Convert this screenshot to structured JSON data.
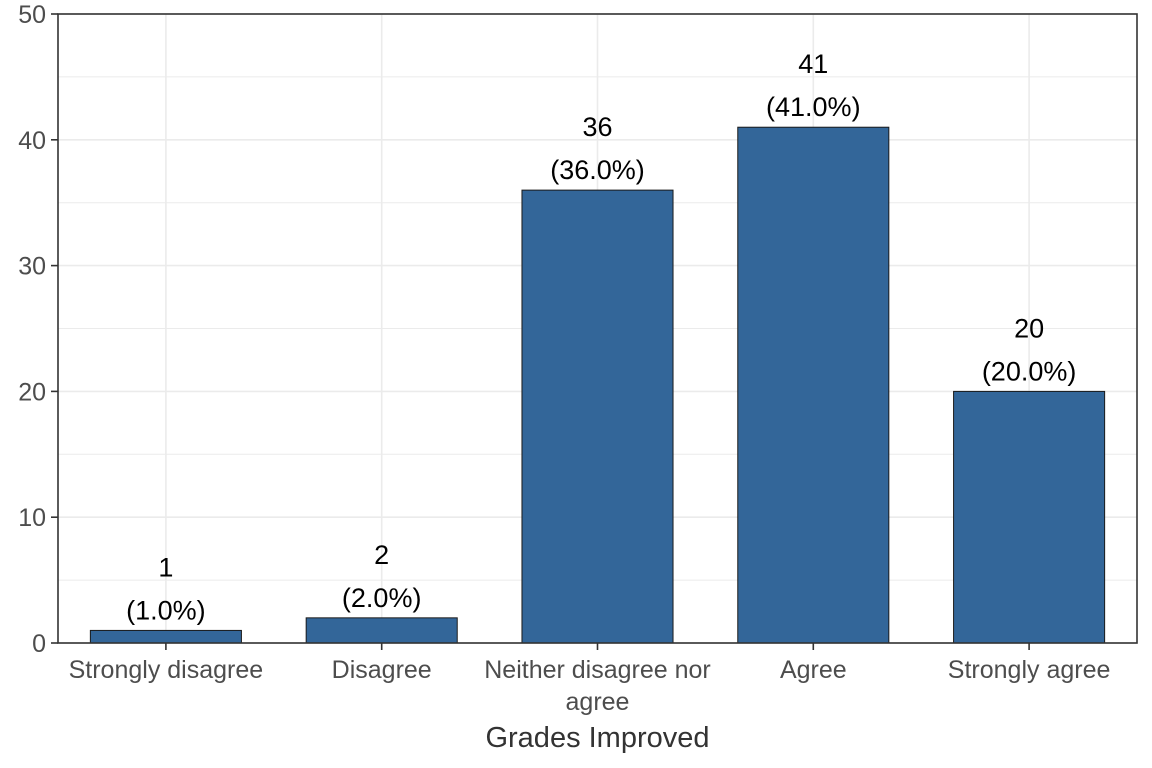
{
  "chart_data": {
    "type": "bar",
    "categories": [
      "Strongly disagree",
      "Disagree",
      "Neither disagree nor agree",
      "Agree",
      "Strongly agree"
    ],
    "category_lines": [
      [
        "Strongly disagree"
      ],
      [
        "Disagree"
      ],
      [
        "Neither disagree nor",
        "agree"
      ],
      [
        "Agree"
      ],
      [
        "Strongly agree"
      ]
    ],
    "values": [
      1,
      2,
      36,
      41,
      20
    ],
    "labels": [
      [
        "1",
        "(1.0%)"
      ],
      [
        "2",
        "(2.0%)"
      ],
      [
        "36",
        "(36.0%)"
      ],
      [
        "41",
        "(41.0%)"
      ],
      [
        "20",
        "(20.0%)"
      ]
    ],
    "title": "",
    "xlabel": "Grades Improved",
    "ylabel": "",
    "ylim": [
      0,
      50
    ],
    "yticks": [
      0,
      10,
      20,
      30,
      40,
      50
    ],
    "grid": true,
    "legend": "none",
    "colors": {
      "bar_fill": "#336699",
      "bar_stroke": "#1a1a1a",
      "grid": "#ebebeb",
      "panel_border": "#333333",
      "tick_text": "#4d4d4d",
      "axis_title": "#333333"
    }
  }
}
